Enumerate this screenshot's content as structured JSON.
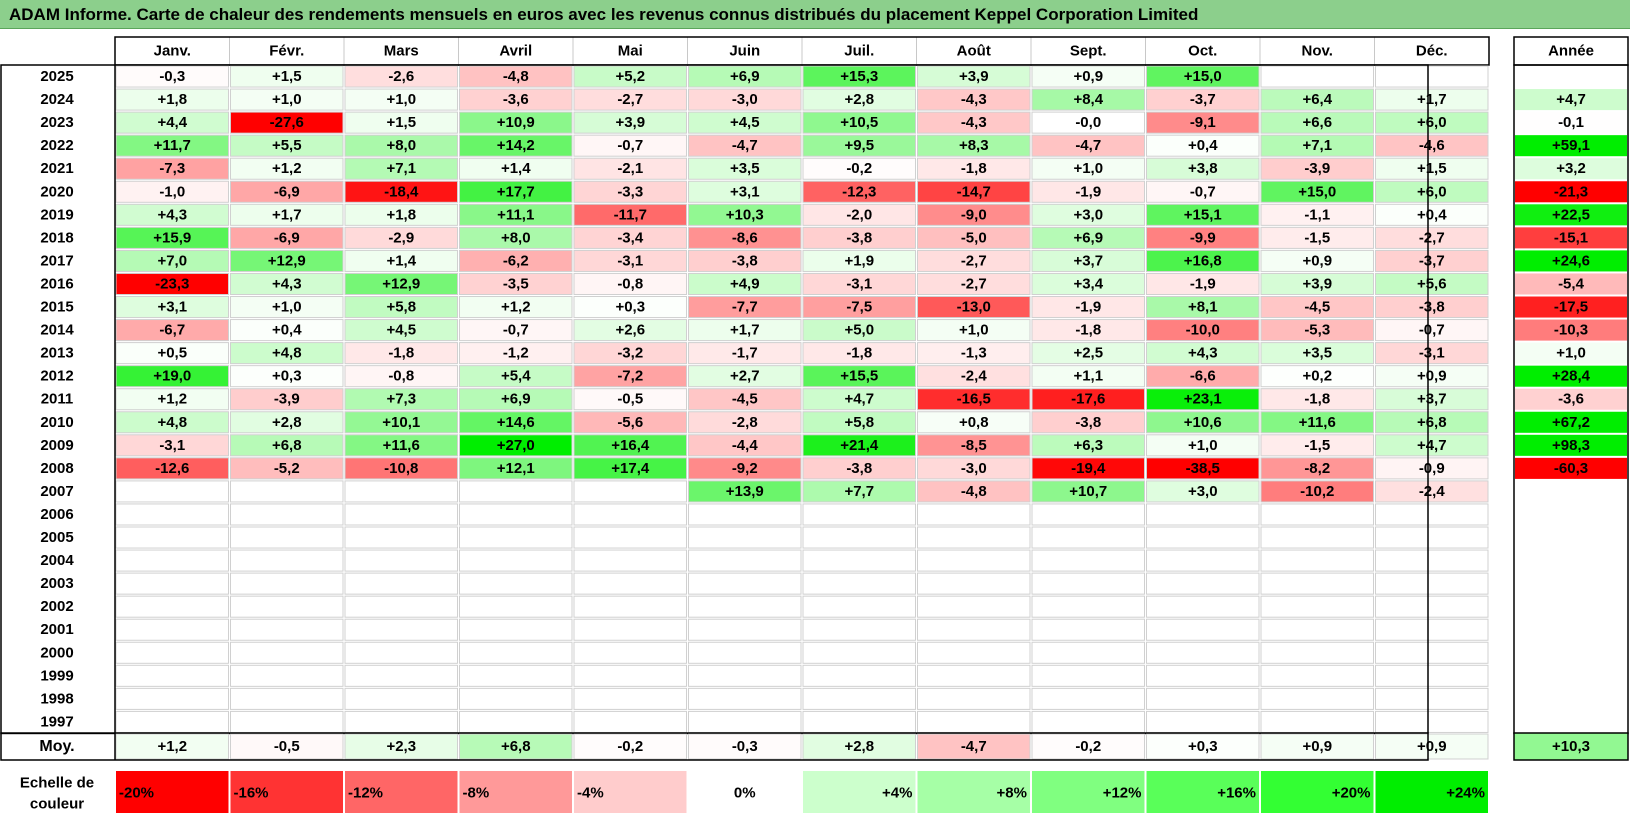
{
  "title": "ADAM Informe. Carte de chaleur des rendements mensuels en euros avec les revenus connus distribués du placement Keppel Corporation Limited",
  "chart_data": {
    "type": "heatmap",
    "months": [
      "Janv.",
      "Févr.",
      "Mars",
      "Avril",
      "Mai",
      "Juin",
      "Juil.",
      "Août",
      "Sept.",
      "Oct.",
      "Nov.",
      "Déc."
    ],
    "year_header": "Année",
    "rows": [
      {
        "year": "2025",
        "values": [
          "-0,3",
          "+1,5",
          "-2,6",
          "-4,8",
          "+5,2",
          "+6,9",
          "+15,3",
          "+3,9",
          "+0,9",
          "+15,0",
          "",
          ""
        ],
        "annual": ""
      },
      {
        "year": "2024",
        "values": [
          "+1,8",
          "+1,0",
          "+1,0",
          "-3,6",
          "-2,7",
          "-3,0",
          "+2,8",
          "-4,3",
          "+8,4",
          "-3,7",
          "+6,4",
          "+1,7"
        ],
        "annual": "+4,7"
      },
      {
        "year": "2023",
        "values": [
          "+4,4",
          "-27,6",
          "+1,5",
          "+10,9",
          "+3,9",
          "+4,5",
          "+10,5",
          "-4,3",
          "-0,0",
          "-9,1",
          "+6,6",
          "+6,0"
        ],
        "annual": "-0,1"
      },
      {
        "year": "2022",
        "values": [
          "+11,7",
          "+5,5",
          "+8,0",
          "+14,2",
          "-0,7",
          "-4,7",
          "+9,5",
          "+8,3",
          "-4,7",
          "+0,4",
          "+7,1",
          "-4,6"
        ],
        "annual": "+59,1"
      },
      {
        "year": "2021",
        "values": [
          "-7,3",
          "+1,2",
          "+7,1",
          "+1,4",
          "-2,1",
          "+3,5",
          "-0,2",
          "-1,8",
          "+1,0",
          "+3,8",
          "-3,9",
          "+1,5"
        ],
        "annual": "+3,2"
      },
      {
        "year": "2020",
        "values": [
          "-1,0",
          "-6,9",
          "-18,4",
          "+17,7",
          "-3,3",
          "+3,1",
          "-12,3",
          "-14,7",
          "-1,9",
          "-0,7",
          "+15,0",
          "+6,0"
        ],
        "annual": "-21,3"
      },
      {
        "year": "2019",
        "values": [
          "+4,3",
          "+1,7",
          "+1,8",
          "+11,1",
          "-11,7",
          "+10,3",
          "-2,0",
          "-9,0",
          "+3,0",
          "+15,1",
          "-1,1",
          "+0,4"
        ],
        "annual": "+22,5"
      },
      {
        "year": "2018",
        "values": [
          "+15,9",
          "-6,9",
          "-2,9",
          "+8,0",
          "-3,4",
          "-8,6",
          "-3,8",
          "-5,0",
          "+6,9",
          "-9,9",
          "-1,5",
          "-2,7"
        ],
        "annual": "-15,1"
      },
      {
        "year": "2017",
        "values": [
          "+7,0",
          "+12,9",
          "+1,4",
          "-6,2",
          "-3,1",
          "-3,8",
          "+1,9",
          "-2,7",
          "+3,7",
          "+16,8",
          "+0,9",
          "-3,7"
        ],
        "annual": "+24,6"
      },
      {
        "year": "2016",
        "values": [
          "-23,3",
          "+4,3",
          "+12,9",
          "-3,5",
          "-0,8",
          "+4,9",
          "-3,1",
          "-2,7",
          "+3,4",
          "-1,9",
          "+3,9",
          "+5,6"
        ],
        "annual": "-5,4"
      },
      {
        "year": "2015",
        "values": [
          "+3,1",
          "+1,0",
          "+5,8",
          "+1,2",
          "+0,3",
          "-7,7",
          "-7,5",
          "-13,0",
          "-1,9",
          "+8,1",
          "-4,5",
          "-3,8"
        ],
        "annual": "-17,5"
      },
      {
        "year": "2014",
        "values": [
          "-6,7",
          "+0,4",
          "+4,5",
          "-0,7",
          "+2,6",
          "+1,7",
          "+5,0",
          "+1,0",
          "-1,8",
          "-10,0",
          "-5,3",
          "-0,7"
        ],
        "annual": "-10,3"
      },
      {
        "year": "2013",
        "values": [
          "+0,5",
          "+4,8",
          "-1,8",
          "-1,2",
          "-3,2",
          "-1,7",
          "-1,8",
          "-1,3",
          "+2,5",
          "+4,3",
          "+3,5",
          "-3,1"
        ],
        "annual": "+1,0"
      },
      {
        "year": "2012",
        "values": [
          "+19,0",
          "+0,3",
          "-0,8",
          "+5,4",
          "-7,2",
          "+2,7",
          "+15,5",
          "-2,4",
          "+1,1",
          "-6,6",
          "+0,2",
          "+0,9"
        ],
        "annual": "+28,4"
      },
      {
        "year": "2011",
        "values": [
          "+1,2",
          "-3,9",
          "+7,3",
          "+6,9",
          "-0,5",
          "-4,5",
          "+4,7",
          "-16,5",
          "-17,6",
          "+23,1",
          "-1,8",
          "+3,7"
        ],
        "annual": "-3,6"
      },
      {
        "year": "2010",
        "values": [
          "+4,8",
          "+2,8",
          "+10,1",
          "+14,6",
          "-5,6",
          "-2,8",
          "+5,8",
          "+0,8",
          "-3,8",
          "+10,6",
          "+11,6",
          "+6,8"
        ],
        "annual": "+67,2"
      },
      {
        "year": "2009",
        "values": [
          "-3,1",
          "+6,8",
          "+11,6",
          "+27,0",
          "+16,4",
          "-4,4",
          "+21,4",
          "-8,5",
          "+6,3",
          "+1,0",
          "-1,5",
          "+4,7"
        ],
        "annual": "+98,3"
      },
      {
        "year": "2008",
        "values": [
          "-12,6",
          "-5,2",
          "-10,8",
          "+12,1",
          "+17,4",
          "-9,2",
          "-3,8",
          "-3,0",
          "-19,4",
          "-38,5",
          "-8,2",
          "-0,9"
        ],
        "annual": "-60,3"
      },
      {
        "year": "2007",
        "values": [
          "",
          "",
          "",
          "",
          "",
          "+13,9",
          "+7,7",
          "-4,8",
          "+10,7",
          "+3,0",
          "-10,2",
          "-2,4"
        ],
        "annual": ""
      },
      {
        "year": "2006",
        "values": [
          "",
          "",
          "",
          "",
          "",
          "",
          "",
          "",
          "",
          "",
          "",
          ""
        ],
        "annual": ""
      },
      {
        "year": "2005",
        "values": [
          "",
          "",
          "",
          "",
          "",
          "",
          "",
          "",
          "",
          "",
          "",
          ""
        ],
        "annual": ""
      },
      {
        "year": "2004",
        "values": [
          "",
          "",
          "",
          "",
          "",
          "",
          "",
          "",
          "",
          "",
          "",
          ""
        ],
        "annual": ""
      },
      {
        "year": "2003",
        "values": [
          "",
          "",
          "",
          "",
          "",
          "",
          "",
          "",
          "",
          "",
          "",
          ""
        ],
        "annual": ""
      },
      {
        "year": "2002",
        "values": [
          "",
          "",
          "",
          "",
          "",
          "",
          "",
          "",
          "",
          "",
          "",
          ""
        ],
        "annual": ""
      },
      {
        "year": "2001",
        "values": [
          "",
          "",
          "",
          "",
          "",
          "",
          "",
          "",
          "",
          "",
          "",
          ""
        ],
        "annual": ""
      },
      {
        "year": "2000",
        "values": [
          "",
          "",
          "",
          "",
          "",
          "",
          "",
          "",
          "",
          "",
          "",
          ""
        ],
        "annual": ""
      },
      {
        "year": "1999",
        "values": [
          "",
          "",
          "",
          "",
          "",
          "",
          "",
          "",
          "",
          "",
          "",
          ""
        ],
        "annual": ""
      },
      {
        "year": "1998",
        "values": [
          "",
          "",
          "",
          "",
          "",
          "",
          "",
          "",
          "",
          "",
          "",
          ""
        ],
        "annual": ""
      },
      {
        "year": "1997",
        "values": [
          "",
          "",
          "",
          "",
          "",
          "",
          "",
          "",
          "",
          "",
          "",
          ""
        ],
        "annual": ""
      }
    ],
    "average": {
      "label": "Moy.",
      "values": [
        "+1,2",
        "-0,5",
        "+2,3",
        "+6,8",
        "-0,2",
        "-0,3",
        "+2,8",
        "-4,7",
        "-0,2",
        "+0,3",
        "+0,9",
        "+0,9"
      ],
      "annual": "+10,3"
    },
    "scale": {
      "label": "Echelle de couleur",
      "steps": [
        {
          "text": "-20%",
          "color": "#ff0000"
        },
        {
          "text": "-16%",
          "color": "#ff3333"
        },
        {
          "text": "-12%",
          "color": "#ff6666"
        },
        {
          "text": "-8%",
          "color": "#ff9999"
        },
        {
          "text": "-4%",
          "color": "#ffcccc"
        },
        {
          "text": "0%",
          "color": "#ffffff"
        },
        {
          "text": "+4%",
          "color": "#ccffcc"
        },
        {
          "text": "+8%",
          "color": "#a6ffa6"
        },
        {
          "text": "+12%",
          "color": "#80ff80"
        },
        {
          "text": "+16%",
          "color": "#59ff59"
        },
        {
          "text": "+20%",
          "color": "#33ff33"
        },
        {
          "text": "+24%",
          "color": "#00ee00"
        }
      ]
    },
    "colors": {
      "negative": "#ff0000",
      "neutral": "#ffffff",
      "positive": "#00ee00"
    }
  }
}
